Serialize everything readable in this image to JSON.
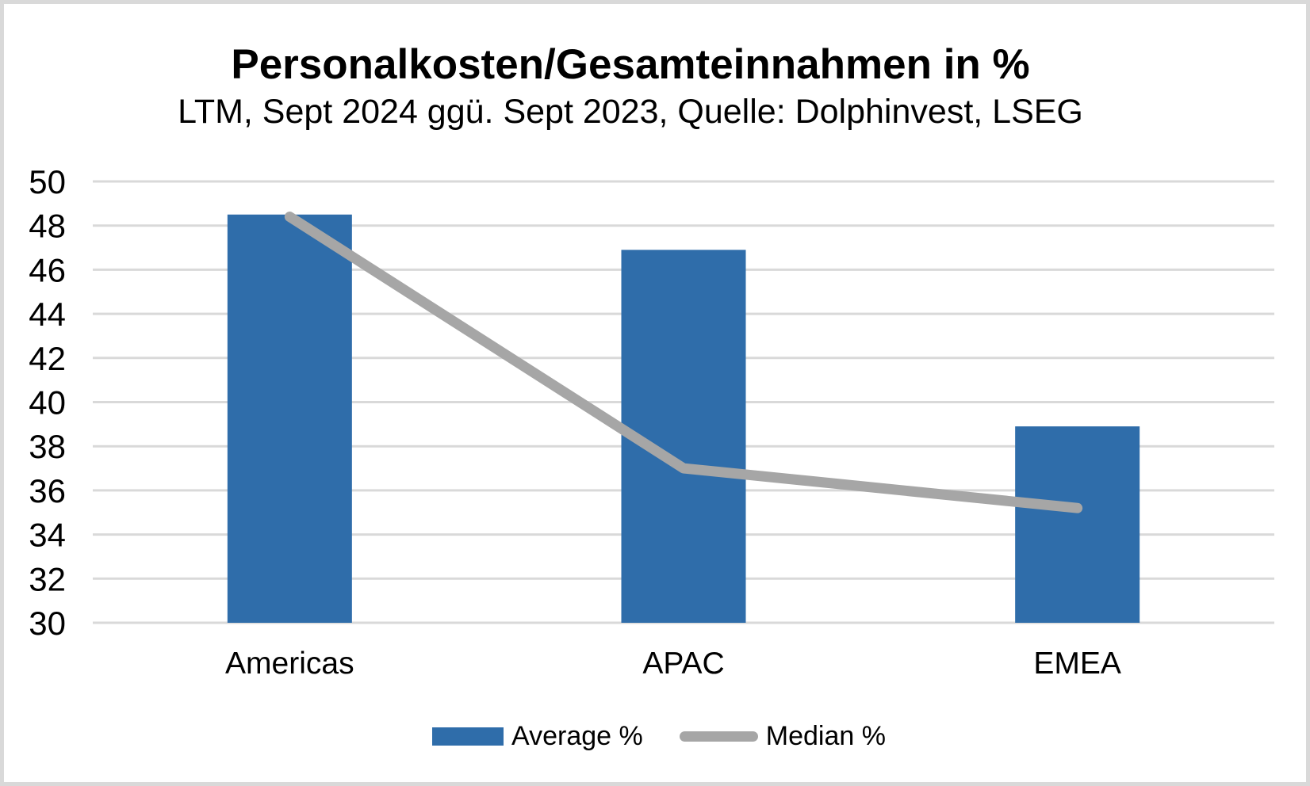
{
  "page": {
    "background": "#FFFFFF",
    "border_color": "#D9D9D9"
  },
  "chart_data": {
    "type": "bar",
    "title": "Personalkosten/Gesamteinnahmen in %",
    "subtitle": "LTM, Sept 2024 ggü. Sept 2023, Quelle: Dolphinvest, LSEG",
    "categories": [
      "Americas",
      "APAC",
      "EMEA"
    ],
    "series": [
      {
        "name": "Average %",
        "type": "bar",
        "values": [
          48.5,
          46.9,
          38.9
        ],
        "color": "#2F6DAA"
      },
      {
        "name": "Median %",
        "type": "line",
        "values": [
          48.4,
          37.0,
          35.2
        ],
        "color": "#A6A6A6"
      }
    ],
    "xlabel": "",
    "ylabel": "",
    "ylim": [
      30,
      50
    ],
    "yticks": [
      30,
      32,
      34,
      36,
      38,
      40,
      42,
      44,
      46,
      48,
      50
    ],
    "grid": {
      "horizontal": true,
      "color": "#D9D9D9"
    },
    "legend_position": "bottom",
    "text_color": "#000000"
  }
}
